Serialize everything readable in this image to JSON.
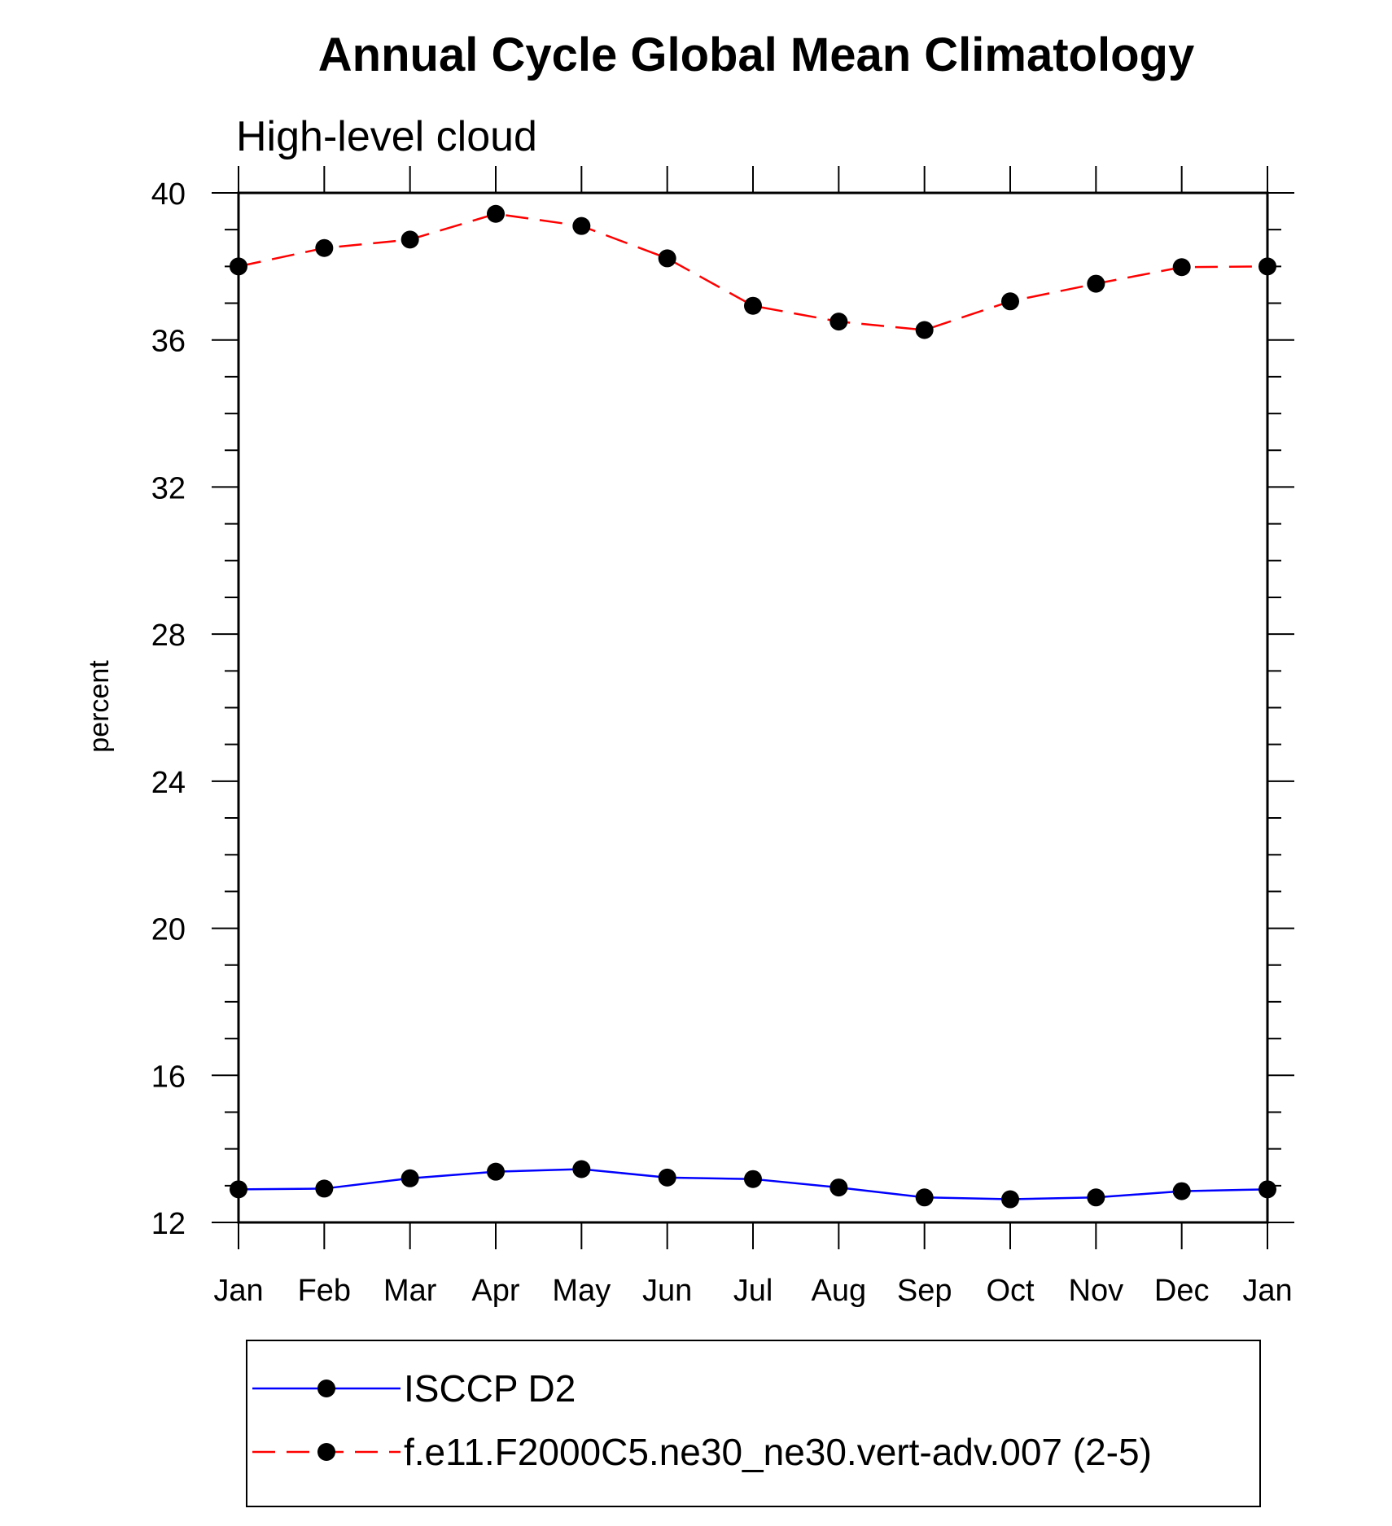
{
  "chart_data": {
    "type": "line",
    "title": "Annual Cycle Global Mean Climatology",
    "subtitle": "High-level cloud",
    "xlabel": "",
    "ylabel": "percent",
    "ylim": [
      12,
      40
    ],
    "yticks": [
      "12",
      "16",
      "20",
      "24",
      "28",
      "32",
      "36",
      "40"
    ],
    "categories": [
      "Jan",
      "Feb",
      "Mar",
      "Apr",
      "May",
      "Jun",
      "Jul",
      "Aug",
      "Sep",
      "Oct",
      "Nov",
      "Dec",
      "Jan"
    ],
    "grid": false,
    "legend_position": "bottom",
    "series": [
      {
        "name": "ISCCP D2",
        "color": "#0000ff",
        "line_style": "solid",
        "marker": "filled-circle",
        "values": [
          12.9,
          12.92,
          13.2,
          13.38,
          13.45,
          13.22,
          13.18,
          12.95,
          12.68,
          12.63,
          12.68,
          12.85,
          12.9
        ]
      },
      {
        "name": "f.e11.F2000C5.ne30_ne30.vert-adv.007 (2-5)",
        "color": "#ff0000",
        "line_style": "dashed",
        "marker": "filled-circle",
        "values": [
          38.0,
          38.5,
          38.73,
          39.43,
          39.1,
          38.22,
          36.93,
          36.5,
          36.27,
          37.05,
          37.53,
          37.98,
          38.0
        ]
      }
    ]
  }
}
